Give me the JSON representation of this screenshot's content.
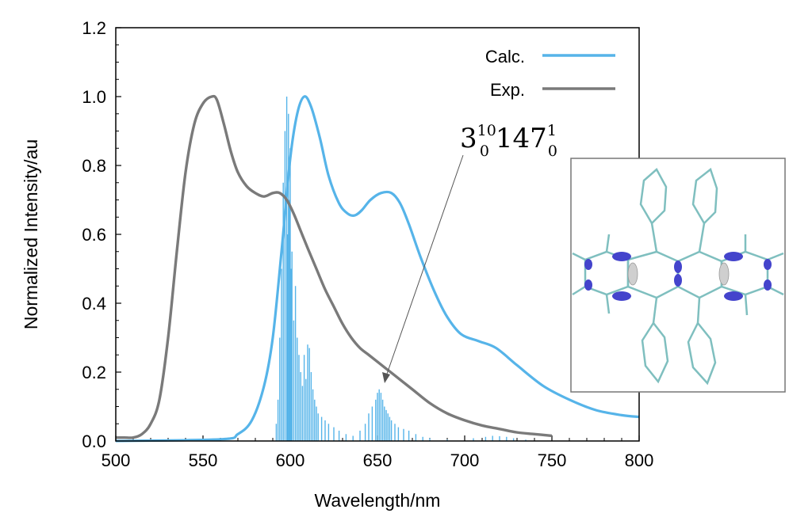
{
  "chart_data": {
    "type": "line",
    "title": "",
    "xlabel": "Wavelength/nm",
    "ylabel": "Normalized Intensity/au",
    "xlim": [
      500,
      800
    ],
    "ylim": [
      0,
      1.2
    ],
    "xticks": [
      "500",
      "550",
      "600",
      "650",
      "700",
      "750",
      "800"
    ],
    "yticks": [
      "0.0",
      "0.2",
      "0.4",
      "0.6",
      "0.8",
      "1.0",
      "1.2"
    ],
    "grid": false,
    "legend_position": "top-right",
    "series": [
      {
        "name": "Calc.",
        "color": "#56b4e9",
        "x": [
          500,
          560,
          570,
          578,
          585,
          590,
          595,
          600,
          604,
          608,
          612,
          617,
          622,
          628,
          633,
          637,
          641,
          646,
          652,
          658,
          663,
          668,
          675,
          683,
          690,
          698,
          708,
          718,
          730,
          745,
          760,
          775,
          790,
          800
        ],
        "y": [
          0.0,
          0.005,
          0.02,
          0.06,
          0.16,
          0.3,
          0.55,
          0.82,
          0.95,
          1.0,
          0.97,
          0.88,
          0.77,
          0.69,
          0.66,
          0.655,
          0.67,
          0.7,
          0.72,
          0.72,
          0.69,
          0.63,
          0.53,
          0.43,
          0.36,
          0.31,
          0.29,
          0.27,
          0.22,
          0.16,
          0.12,
          0.09,
          0.075,
          0.07
        ]
      },
      {
        "name": "Exp.",
        "color": "#7a7a7a",
        "x": [
          500,
          505,
          510,
          515,
          520,
          525,
          530,
          535,
          540,
          545,
          550,
          555,
          558,
          562,
          566,
          570,
          575,
          580,
          585,
          590,
          594,
          598,
          602,
          606,
          610,
          615,
          620,
          625,
          630,
          635,
          640,
          645,
          650,
          655,
          660,
          670,
          680,
          690,
          700,
          710,
          720,
          730,
          740,
          750
        ],
        "y": [
          0.01,
          0.01,
          0.01,
          0.02,
          0.05,
          0.12,
          0.3,
          0.55,
          0.78,
          0.92,
          0.98,
          1.0,
          0.99,
          0.92,
          0.84,
          0.78,
          0.74,
          0.72,
          0.71,
          0.72,
          0.72,
          0.7,
          0.66,
          0.61,
          0.56,
          0.5,
          0.44,
          0.39,
          0.34,
          0.3,
          0.27,
          0.25,
          0.23,
          0.21,
          0.19,
          0.15,
          0.11,
          0.08,
          0.06,
          0.045,
          0.035,
          0.025,
          0.02,
          0.015
        ]
      }
    ],
    "stick_spectrum": {
      "color": "#56b4e9",
      "x": [
        592,
        593,
        594,
        595,
        596,
        597,
        598,
        598.5,
        599,
        599.5,
        600,
        600.5,
        601,
        602,
        603,
        604,
        605,
        606,
        607,
        608,
        609,
        610,
        611,
        612,
        613,
        614,
        615,
        616,
        618,
        620,
        622,
        625,
        628,
        632,
        636,
        640,
        643,
        645,
        647,
        649,
        650,
        651,
        652,
        653,
        654,
        655,
        656,
        657,
        658,
        660,
        662,
        665,
        668,
        672,
        676,
        680,
        690,
        705,
        712,
        716,
        720,
        724,
        728,
        735
      ],
      "y": [
        0.05,
        0.12,
        0.3,
        0.5,
        0.75,
        0.9,
        1.0,
        0.6,
        0.95,
        0.7,
        0.85,
        0.5,
        0.55,
        0.35,
        0.45,
        0.3,
        0.25,
        0.2,
        0.16,
        0.25,
        0.18,
        0.28,
        0.27,
        0.2,
        0.15,
        0.12,
        0.1,
        0.08,
        0.07,
        0.06,
        0.05,
        0.04,
        0.03,
        0.02,
        0.015,
        0.03,
        0.05,
        0.08,
        0.1,
        0.12,
        0.14,
        0.15,
        0.14,
        0.12,
        0.1,
        0.09,
        0.08,
        0.07,
        0.06,
        0.05,
        0.04,
        0.035,
        0.03,
        0.02,
        0.012,
        0.008,
        0.004,
        0.008,
        0.012,
        0.015,
        0.014,
        0.012,
        0.008,
        0.004
      ]
    },
    "annotations": [
      {
        "text_main": "3",
        "sup": "10",
        "sub": "0",
        "text_main2": "147",
        "sup2": "1",
        "sub2": "0",
        "arrow_to": [
          652,
          0.19
        ]
      }
    ],
    "inset": "molecular structure with orbital isosurfaces"
  }
}
